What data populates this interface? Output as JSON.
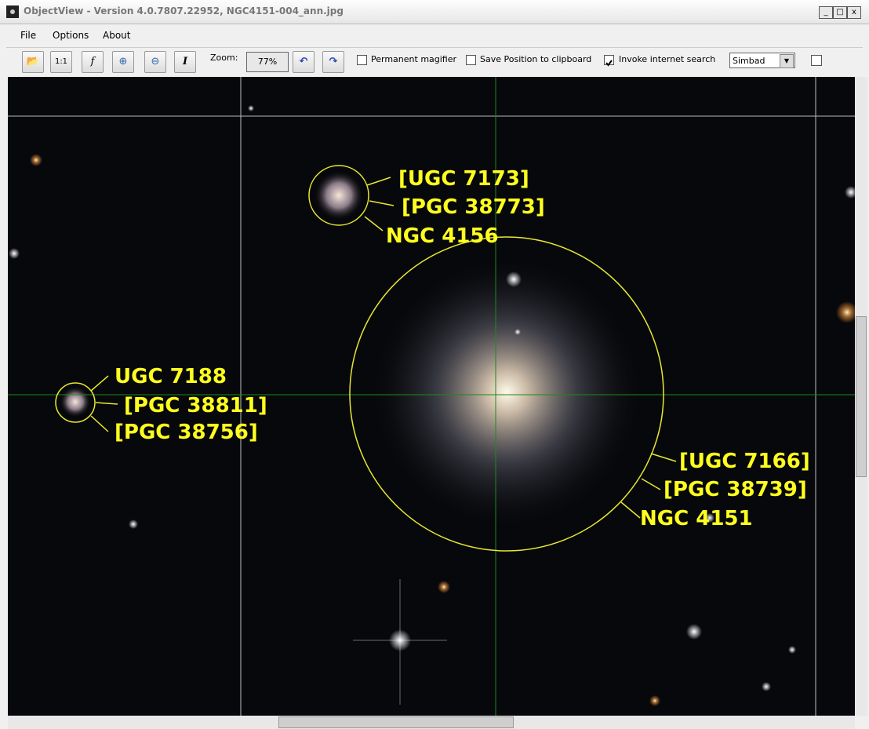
{
  "window": {
    "title": "ObjectView - Version 4.0.7807.22952, NGC4151-004_ann.jpg"
  },
  "menu": [
    "File",
    "Options",
    "About"
  ],
  "toolbar": {
    "actual_size": "1:1",
    "function": "f",
    "info": "I",
    "zoom_label": "Zoom:",
    "zoom_value": "77%",
    "options": [
      {
        "label": "Permanent magifier",
        "checked": false
      },
      {
        "label": "Save Position to clipboard",
        "checked": false
      },
      {
        "label": "Invoke internet search",
        "checked": true
      }
    ],
    "search_engine": "Simbad"
  },
  "annotations": [
    {
      "labels": [
        "[UGC 7173]",
        "[PGC 38773]",
        "NGC 4156"
      ]
    },
    {
      "labels": [
        "UGC 7188",
        "[PGC 38811]",
        "[PGC 38756]"
      ]
    },
    {
      "labels": [
        "[UGC 7166]",
        "[PGC 38739]",
        "NGC 4151"
      ]
    }
  ]
}
